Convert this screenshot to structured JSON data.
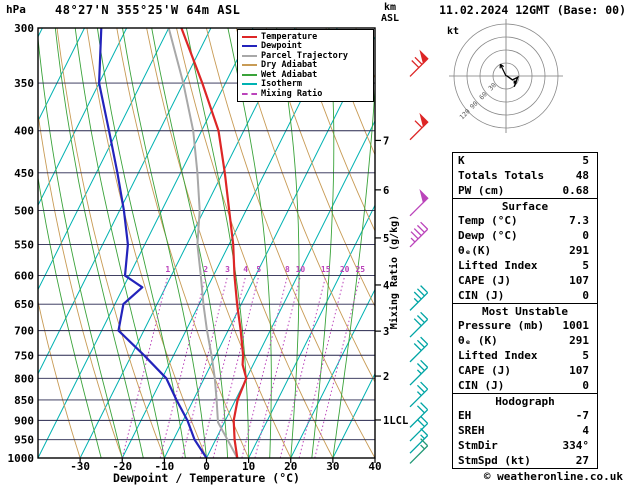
{
  "header": {
    "station": "48°27'N 355°25'W 64m ASL",
    "datetime": "11.02.2024 12GMT (Base: 00)"
  },
  "labels": {
    "pressure_unit": "hPa",
    "km": "km",
    "asl": "ASL",
    "xaxis": "Dewpoint / Temperature (°C)",
    "mixing_axis": "Mixing Ratio (g/kg)",
    "kt": "kt"
  },
  "legend": [
    {
      "label": "Temperature",
      "color": "#dd2626",
      "dash": ""
    },
    {
      "label": "Dewpoint",
      "color": "#2323bb",
      "dash": ""
    },
    {
      "label": "Parcel Trajectory",
      "color": "#a8a8a8",
      "dash": ""
    },
    {
      "label": "Dry Adiabat",
      "color": "#c89b55",
      "dash": ""
    },
    {
      "label": "Wet Adiabat",
      "color": "#3aa33a",
      "dash": ""
    },
    {
      "label": "Isotherm",
      "color": "#00b2b2",
      "dash": ""
    },
    {
      "label": "Mixing Ratio",
      "color": "#bb44bb",
      "dash": "2,3"
    }
  ],
  "table": {
    "sections": [
      {
        "header": null,
        "rows": [
          [
            "K",
            "5"
          ],
          [
            "Totals Totals",
            "48"
          ],
          [
            "PW (cm)",
            "0.68"
          ]
        ]
      },
      {
        "header": "Surface",
        "rows": [
          [
            "Temp (°C)",
            "7.3"
          ],
          [
            "Dewp (°C)",
            "0"
          ],
          [
            "θₑ(K)",
            "291"
          ],
          [
            "Lifted Index",
            "5"
          ],
          [
            "CAPE (J)",
            "107"
          ],
          [
            "CIN (J)",
            "0"
          ]
        ]
      },
      {
        "header": "Most Unstable",
        "rows": [
          [
            "Pressure (mb)",
            "1001"
          ],
          [
            "θₑ (K)",
            "291"
          ],
          [
            "Lifted Index",
            "5"
          ],
          [
            "CAPE (J)",
            "107"
          ],
          [
            "CIN (J)",
            "0"
          ]
        ]
      },
      {
        "header": "Hodograph",
        "rows": [
          [
            "EH",
            "-7"
          ],
          [
            "SREH",
            "4"
          ],
          [
            "StmDir",
            "334°"
          ],
          [
            "StmSpd (kt)",
            "27"
          ]
        ]
      }
    ]
  },
  "hodograph": {
    "unit": "kt",
    "rings_kt": [
      30,
      60,
      90,
      120
    ],
    "trace_kt": [
      [
        1,
        -1
      ],
      [
        15,
        9
      ],
      [
        27,
        3
      ],
      [
        19,
        25
      ]
    ],
    "marker_kt": [
      21,
      14
    ],
    "storm_arrow_kt": [
      -13,
      -27
    ]
  },
  "footer": {
    "copyright": "© weatheronline.co.uk"
  },
  "chart_data": {
    "type": "line",
    "title": "Skew-T log-P sounding, 48°27'N 355°25'W 64m ASL, 11.02.2024 12GMT",
    "x_axis": {
      "label": "Dewpoint / Temperature (°C)",
      "ticks": [
        -30,
        -20,
        -10,
        0,
        10,
        20,
        30,
        40
      ],
      "range": [
        -40,
        40
      ]
    },
    "y_axis": {
      "label": "hPa",
      "scale": "log",
      "ticks": [
        300,
        350,
        400,
        450,
        500,
        550,
        600,
        650,
        700,
        750,
        800,
        850,
        900,
        950,
        1000
      ],
      "range": [
        300,
        1000
      ]
    },
    "km_ticks": [
      {
        "km": "1",
        "p": 899,
        "suffix": "LCL"
      },
      {
        "km": "2",
        "p": 795
      },
      {
        "km": "3",
        "p": 701
      },
      {
        "km": "4",
        "p": 616
      },
      {
        "km": "5",
        "p": 540
      },
      {
        "km": "6",
        "p": 472
      },
      {
        "km": "7",
        "p": 411
      }
    ],
    "isotherms_c": {
      "min": -100,
      "max": 40,
      "step": 10
    },
    "dry_adiabats_c": {
      "min": -30,
      "max": 160,
      "step": 10
    },
    "wet_adiabats_c": {
      "min": -25,
      "max": 30,
      "step": 5
    },
    "mixing_ratio_lines": [
      {
        "value": 1,
        "td": -20
      },
      {
        "value": 2,
        "td": -11
      },
      {
        "value": 3,
        "td": -5.8
      },
      {
        "value": 4,
        "td": -1.5
      },
      {
        "value": 5,
        "td": 1.6
      },
      {
        "value": 8,
        "td": 8.4
      },
      {
        "value": 10,
        "td": 11.5
      },
      {
        "value": 15,
        "td": 17.5
      },
      {
        "value": 20,
        "td": 22
      },
      {
        "value": 25,
        "td": 25.7
      }
    ],
    "colors": {
      "isotherm": "#00b2b2",
      "dry_adiabat": "#c89b55",
      "wet_adiabat": "#3aa33a",
      "mixing": "#bb44bb",
      "grid": "#26264d"
    },
    "series": [
      {
        "name": "Parcel Trajectory",
        "color": "#a8a8a8",
        "width": 2,
        "points": [
          [
            1000,
            7.3
          ],
          [
            950,
            2.8
          ],
          [
            905,
            -1.5
          ],
          [
            850,
            -4.5
          ],
          [
            800,
            -7.5
          ],
          [
            750,
            -11
          ],
          [
            700,
            -15
          ],
          [
            650,
            -19
          ],
          [
            600,
            -23
          ],
          [
            550,
            -27.5
          ],
          [
            500,
            -31
          ],
          [
            450,
            -36
          ],
          [
            400,
            -42
          ],
          [
            350,
            -50
          ],
          [
            300,
            -60
          ]
        ]
      },
      {
        "name": "Temperature",
        "color": "#dd2626",
        "width": 2.2,
        "points": [
          [
            1000,
            7.3
          ],
          [
            950,
            4.5
          ],
          [
            900,
            2
          ],
          [
            850,
            0.5
          ],
          [
            800,
            0
          ],
          [
            770,
            -2.5
          ],
          [
            750,
            -3.5
          ],
          [
            700,
            -7
          ],
          [
            650,
            -11
          ],
          [
            600,
            -15
          ],
          [
            550,
            -19
          ],
          [
            500,
            -24
          ],
          [
            450,
            -29.5
          ],
          [
            400,
            -36
          ],
          [
            350,
            -45.5
          ],
          [
            300,
            -57
          ]
        ]
      },
      {
        "name": "Dewpoint",
        "color": "#2323bb",
        "width": 2.2,
        "points": [
          [
            1000,
            0
          ],
          [
            950,
            -5
          ],
          [
            900,
            -9
          ],
          [
            850,
            -14
          ],
          [
            800,
            -19
          ],
          [
            750,
            -27
          ],
          [
            700,
            -36
          ],
          [
            650,
            -38
          ],
          [
            620,
            -35.5
          ],
          [
            600,
            -41
          ],
          [
            550,
            -44
          ],
          [
            500,
            -49
          ],
          [
            450,
            -55
          ],
          [
            400,
            -62
          ],
          [
            350,
            -70
          ],
          [
            300,
            -76
          ]
        ]
      }
    ],
    "wind_barbs": [
      {
        "p": 335,
        "kt": 70,
        "color": "#dd2626"
      },
      {
        "p": 400,
        "kt": 60,
        "color": "#dd2626"
      },
      {
        "p": 495,
        "kt": 50,
        "color": "#bb44bb"
      },
      {
        "p": 540,
        "kt": 45,
        "color": "#bb44bb"
      },
      {
        "p": 645,
        "kt": 35,
        "color": "#00a5a5"
      },
      {
        "p": 695,
        "kt": 30,
        "color": "#00a5a5"
      },
      {
        "p": 745,
        "kt": 30,
        "color": "#00a5a5"
      },
      {
        "p": 795,
        "kt": 25,
        "color": "#00a5a5"
      },
      {
        "p": 845,
        "kt": 25,
        "color": "#00a5a5"
      },
      {
        "p": 895,
        "kt": 20,
        "color": "#00a5a5"
      },
      {
        "p": 930,
        "kt": 20,
        "color": "#00a5a5"
      },
      {
        "p": 962,
        "kt": 15,
        "color": "#00a5a5"
      },
      {
        "p": 990,
        "kt": 15,
        "color": "#229977"
      }
    ]
  }
}
